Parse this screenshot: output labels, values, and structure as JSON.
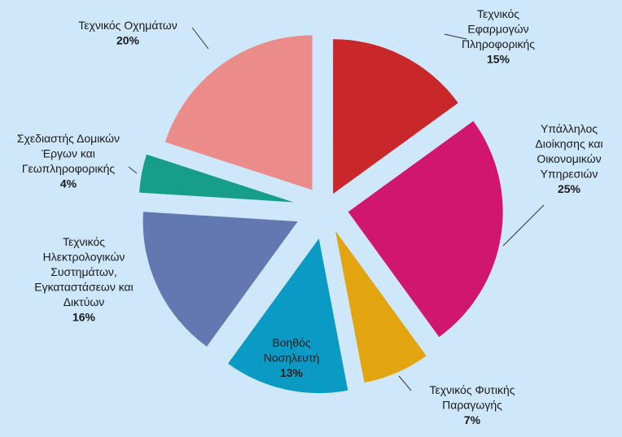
{
  "chart_data": {
    "type": "pie",
    "exploded": true,
    "slices": [
      {
        "label_lines": [
          "Τεχνικός",
          "Εφαρμογών",
          "Πληροφορικής"
        ],
        "value": 15,
        "value_label": "15%",
        "color": "#c8282a"
      },
      {
        "label_lines": [
          "Υπάλληλος",
          "Διοίκησης και",
          "Οικονομικών",
          "Υπηρεσιών"
        ],
        "value": 25,
        "value_label": "25%",
        "color": "#d0166f"
      },
      {
        "label_lines": [
          "Τεχνικός Φυτικής",
          "Παραγωγής"
        ],
        "value": 7,
        "value_label": "7%",
        "color": "#e3a50f"
      },
      {
        "label_lines": [
          "Βοηθός",
          "Νοσηλευτή"
        ],
        "value": 13,
        "value_label": "13%",
        "color": "#0b9ac4"
      },
      {
        "label_lines": [
          "Τεχνικός",
          "Ηλεκτρολογικών",
          "Συστημάτων,",
          "Εγκαταστάσεων και",
          "Δικτύων"
        ],
        "value": 16,
        "value_label": "16%",
        "color": "#6378b0"
      },
      {
        "label_lines": [
          "Σχεδιαστής Δομικών",
          "Έργων και",
          "Γεωπληροφορικής"
        ],
        "value": 4,
        "value_label": "4%",
        "color": "#179e8a"
      },
      {
        "label_lines": [
          "Τεχνικός Οχημάτων"
        ],
        "value": 20,
        "value_label": "20%",
        "color": "#eb8b8a"
      }
    ]
  }
}
